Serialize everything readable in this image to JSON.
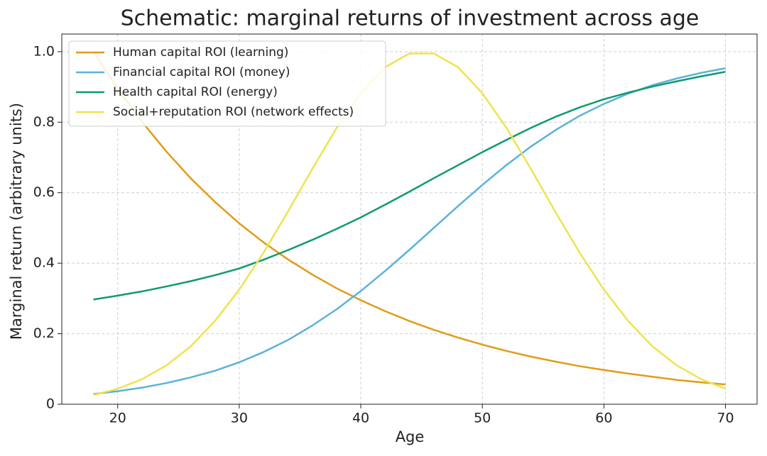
{
  "chart_data": {
    "type": "line",
    "title": "Schematic: marginal returns of investment across age",
    "x_label": "Age",
    "y_label": "Marginal return (arbitrary units)",
    "x": [
      18,
      20,
      22,
      24,
      26,
      28,
      30,
      32,
      34,
      36,
      38,
      40,
      42,
      44,
      46,
      48,
      50,
      52,
      54,
      56,
      58,
      60,
      62,
      64,
      66,
      68,
      70
    ],
    "series": [
      {
        "name": "Human capital ROI (learning)",
        "color": "#e09c17",
        "values": [
          1,
          0.895,
          0.801,
          0.717,
          0.641,
          0.574,
          0.513,
          0.459,
          0.411,
          0.368,
          0.329,
          0.295,
          0.264,
          0.236,
          0.211,
          0.189,
          0.169,
          0.151,
          0.135,
          0.121,
          0.108,
          0.097,
          0.087,
          0.078,
          0.069,
          0.062,
          0.056
        ]
      },
      {
        "name": "Financial capital ROI (money)",
        "color": "#5ab2dd",
        "values": [
          0.029,
          0.037,
          0.047,
          0.06,
          0.076,
          0.095,
          0.119,
          0.148,
          0.182,
          0.223,
          0.269,
          0.321,
          0.378,
          0.438,
          0.5,
          0.562,
          0.622,
          0.679,
          0.731,
          0.777,
          0.818,
          0.852,
          0.881,
          0.905,
          0.924,
          0.94,
          0.953
        ]
      },
      {
        "name": "Health capital ROI (energy)",
        "color": "#109a6e",
        "values": [
          0.297,
          0.308,
          0.32,
          0.334,
          0.349,
          0.366,
          0.385,
          0.41,
          0.437,
          0.466,
          0.497,
          0.53,
          0.566,
          0.603,
          0.641,
          0.678,
          0.715,
          0.75,
          0.784,
          0.815,
          0.842,
          0.865,
          0.884,
          0.901,
          0.916,
          0.93,
          0.943
        ]
      },
      {
        "name": "Social+reputation ROI (network effects)",
        "color": "#ede44e",
        "values": [
          0.026,
          0.044,
          0.071,
          0.11,
          0.164,
          0.236,
          0.325,
          0.43,
          0.546,
          0.667,
          0.783,
          0.882,
          0.956,
          0.995,
          0.995,
          0.956,
          0.882,
          0.783,
          0.667,
          0.546,
          0.43,
          0.325,
          0.236,
          0.164,
          0.11,
          0.071,
          0.044
        ]
      }
    ],
    "xlim": [
      15.4,
      72.6
    ],
    "xticks": [
      20,
      30,
      40,
      50,
      60,
      70
    ],
    "ylim": [
      0,
      1.05
    ],
    "yticks": [
      0,
      0.2,
      0.4,
      0.6,
      0.8,
      {
        "value": 1,
        "label": "1.0"
      }
    ],
    "grid": true,
    "legend": "upper left"
  }
}
